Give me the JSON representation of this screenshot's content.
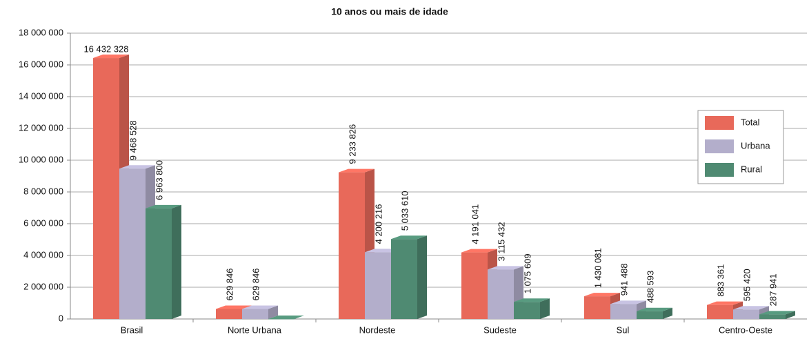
{
  "chart_data": {
    "type": "bar3d",
    "title": "10 anos ou mais de idade",
    "categories": [
      "Brasil",
      "Norte Urbana",
      "Nordeste",
      "Sudeste",
      "Sul",
      "Centro-Oeste"
    ],
    "series": [
      {
        "name": "Total",
        "color": "#e8695a",
        "values": [
          16432328,
          629846,
          9233826,
          4191041,
          1430081,
          883361
        ],
        "value_labels": [
          "16 432 328",
          "629 846",
          "9 233 826",
          "4 191 041",
          "1 430 081",
          "883 361"
        ]
      },
      {
        "name": "Urbana",
        "color": "#b3aecb",
        "values": [
          9468528,
          629846,
          4200216,
          3115432,
          941488,
          595420
        ],
        "value_labels": [
          "9 468 528",
          "629 846",
          "4 200 216",
          "3 115 432",
          "941 488",
          "595 420"
        ]
      },
      {
        "name": "Rural",
        "color": "#4f8a72",
        "values": [
          6963800,
          0,
          5033610,
          1075609,
          488593,
          287941
        ],
        "value_labels": [
          "6 963 800",
          null,
          "5 033 610",
          "1 075 609",
          "488 593",
          "287 941"
        ]
      }
    ],
    "ylim": [
      0,
      18000000
    ],
    "yticks": [
      0,
      {
        "value": 2000000,
        "label": "2 000 000"
      },
      {
        "value": 4000000,
        "label": "4 000 000"
      },
      {
        "value": 6000000,
        "label": "6 000 000"
      },
      {
        "value": 8000000,
        "label": "8 000 000"
      },
      {
        "value": 10000000,
        "label": "10 000 000"
      },
      {
        "value": 12000000,
        "label": "12 000 000"
      },
      {
        "value": 14000000,
        "label": "14 000 000"
      },
      {
        "value": 16000000,
        "label": "16 000 000"
      },
      {
        "value": 18000000,
        "label": "18 000 000"
      }
    ],
    "grid": true,
    "legend": "right"
  }
}
